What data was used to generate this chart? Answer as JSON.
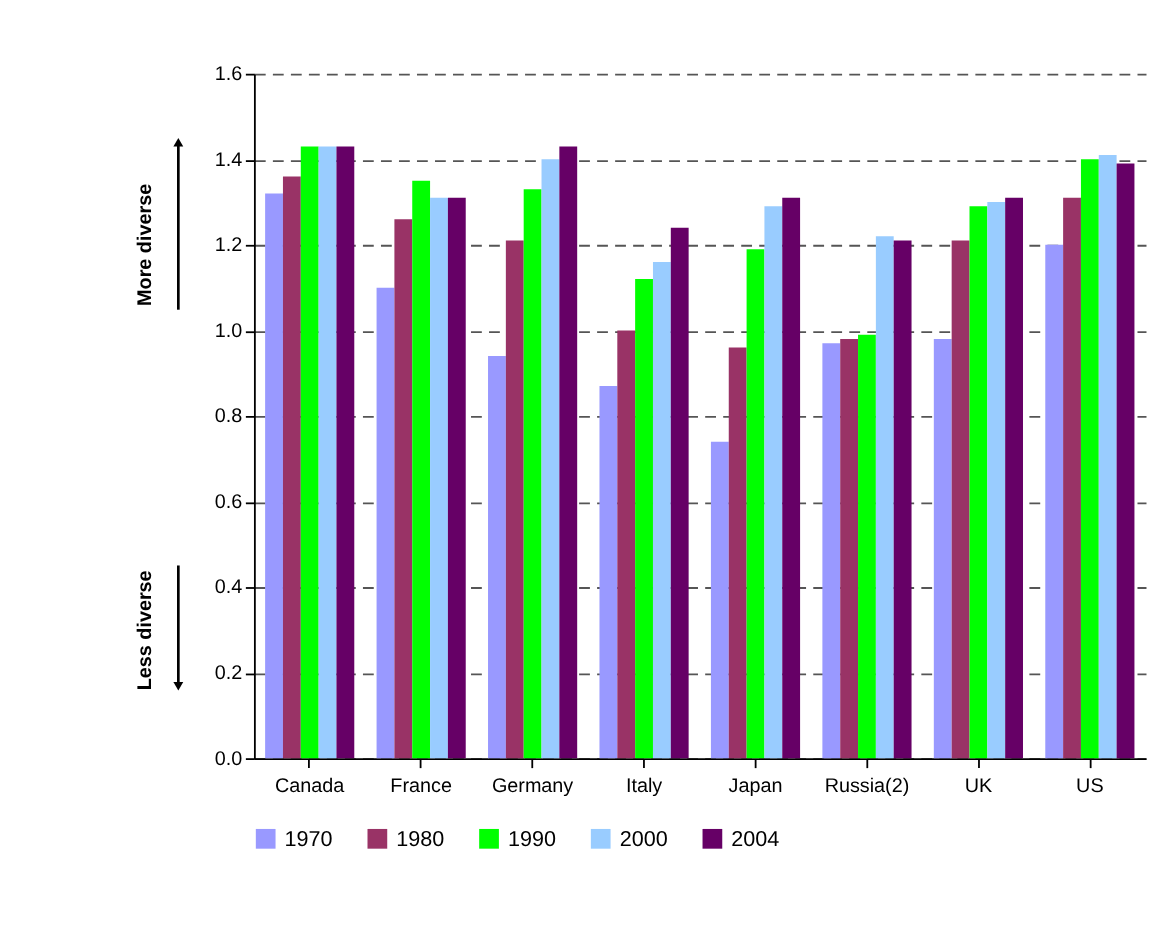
{
  "chart_data": {
    "type": "bar",
    "categories": [
      "Canada",
      "France",
      "Germany",
      "Italy",
      "Japan",
      "Russia(2)",
      "UK",
      "US"
    ],
    "series": [
      {
        "name": "1970",
        "color": "#9999ff",
        "values": [
          1.32,
          1.1,
          0.94,
          0.87,
          0.74,
          0.97,
          0.98,
          1.2
        ]
      },
      {
        "name": "1980",
        "color": "#993366",
        "values": [
          1.36,
          1.26,
          1.21,
          1.0,
          0.96,
          0.98,
          1.21,
          1.31
        ]
      },
      {
        "name": "1990",
        "color": "#00ff00",
        "values": [
          1.43,
          1.35,
          1.33,
          1.12,
          1.19,
          0.99,
          1.29,
          1.4
        ]
      },
      {
        "name": "2000",
        "color": "#99ccff",
        "values": [
          1.43,
          1.31,
          1.4,
          1.16,
          1.29,
          1.22,
          1.3,
          1.41
        ]
      },
      {
        "name": "2004",
        "color": "#660066",
        "values": [
          1.43,
          1.31,
          1.43,
          1.24,
          1.31,
          1.21,
          1.31,
          1.39
        ]
      }
    ],
    "ylim": [
      0,
      1.6
    ],
    "yticks": [
      {
        "value": 0,
        "label": "0.0"
      },
      {
        "value": 0.2,
        "label": "0.2"
      },
      {
        "value": 0.4,
        "label": "0.4"
      },
      {
        "value": 0.6,
        "label": "0.6"
      },
      {
        "value": 0.8,
        "label": "0.8"
      },
      {
        "value": 1.0,
        "label": "1.0"
      },
      {
        "value": 1.2,
        "label": "1.2"
      },
      {
        "value": 1.4,
        "label": "1.4"
      },
      {
        "value": 1.6,
        "label": "1.6"
      }
    ],
    "grid": "y",
    "legend": "bottom",
    "annotations": [
      "More diverse",
      "Less diverse"
    ]
  }
}
